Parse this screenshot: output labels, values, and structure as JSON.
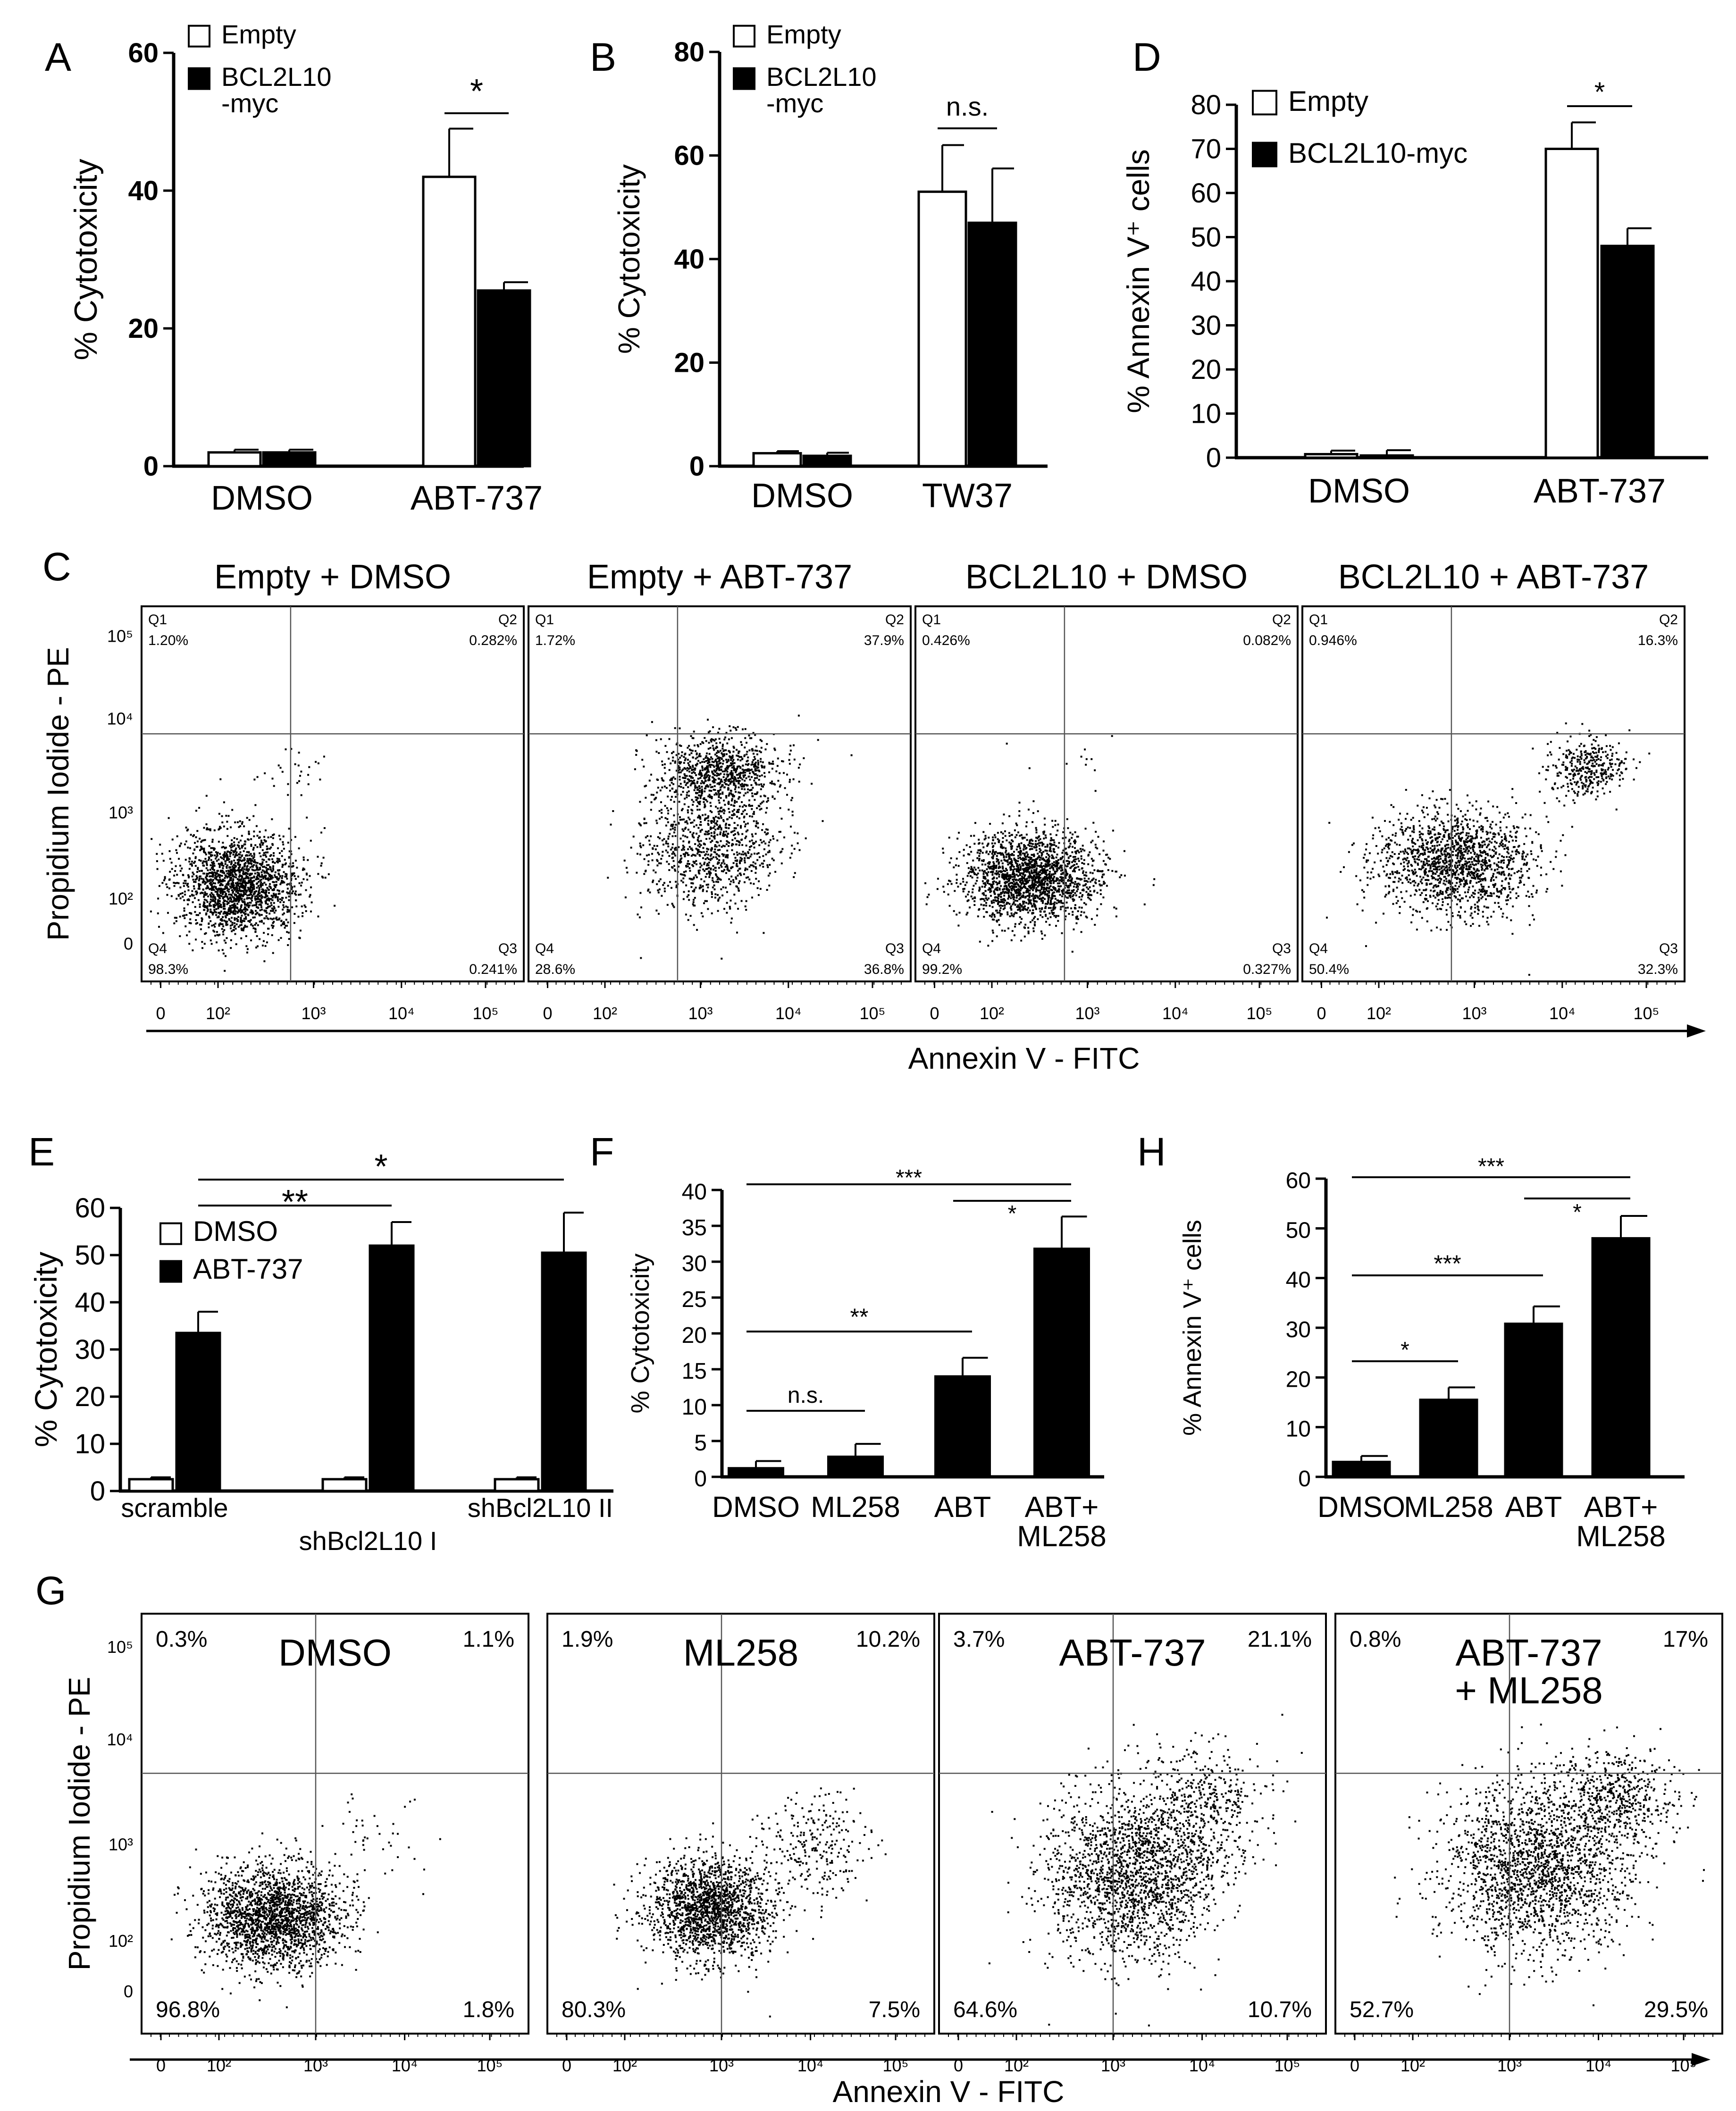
{
  "chart_data": [
    {
      "panel": "A",
      "type": "bar",
      "categories": [
        "DMSO",
        "ABT-737"
      ],
      "series": [
        {
          "name": "Empty",
          "fill": "#ffffff",
          "values": [
            2,
            42
          ],
          "errors": [
            0.4,
            7
          ]
        },
        {
          "name": "BCL2L10\n-myc",
          "fill": "#000000",
          "values": [
            2,
            25.5
          ],
          "errors": [
            0.4,
            1.2
          ]
        }
      ],
      "ylabel": "% Cytotoxicity",
      "ylim": [
        0,
        60
      ],
      "yticks": [
        0,
        20,
        40,
        60
      ],
      "ytick_bold": true,
      "legend": "top-left",
      "brackets": [
        {
          "from": 2,
          "to": 3,
          "label": "*"
        }
      ]
    },
    {
      "panel": "B",
      "type": "bar",
      "categories": [
        "DMSO",
        "TW37"
      ],
      "series": [
        {
          "name": "Empty",
          "fill": "#ffffff",
          "values": [
            2.5,
            53
          ],
          "errors": [
            0.4,
            9
          ]
        },
        {
          "name": "BCL2L10\n-myc",
          "fill": "#000000",
          "values": [
            2,
            47
          ],
          "errors": [
            0.6,
            10.5
          ]
        }
      ],
      "ylabel": "% Cytotoxicity",
      "ylim": [
        0,
        80
      ],
      "yticks": [
        0,
        20,
        40,
        60,
        80
      ],
      "ytick_bold": true,
      "legend": "top-left",
      "brackets": [
        {
          "from": 2,
          "to": 3,
          "label": "n.s."
        }
      ]
    },
    {
      "panel": "D",
      "type": "bar",
      "categories": [
        "DMSO",
        "ABT-737"
      ],
      "series": [
        {
          "name": "Empty",
          "fill": "#ffffff",
          "values": [
            0.8,
            70
          ],
          "errors": [
            0.8,
            6
          ]
        },
        {
          "name": "BCL2L10-myc",
          "fill": "#000000",
          "values": [
            0.5,
            48
          ],
          "errors": [
            1.2,
            4
          ]
        }
      ],
      "ylabel": "% Annexin V⁺ cells",
      "ylim": [
        0,
        80
      ],
      "yticks": [
        0,
        10,
        20,
        30,
        40,
        50,
        60,
        70,
        80
      ],
      "legend": "top-left",
      "brackets": [
        {
          "from": 2,
          "to": 3,
          "label": "*"
        }
      ]
    },
    {
      "panel": "E",
      "type": "bar",
      "categories": [
        "scramble",
        "shBcl2L10 I",
        "shBcl2L10 II"
      ],
      "series": [
        {
          "name": "DMSO",
          "fill": "#ffffff",
          "values": [
            2.5,
            2.5,
            2.5
          ],
          "errors": [
            0.4,
            0.4,
            0.4
          ]
        },
        {
          "name": "ABT-737",
          "fill": "#000000",
          "values": [
            33.5,
            52,
            50.5
          ],
          "errors": [
            4.5,
            5,
            8.5
          ]
        }
      ],
      "ylabel": "% Cytotoxicity",
      "ylim": [
        0,
        60
      ],
      "yticks": [
        0,
        10,
        20,
        30,
        40,
        50,
        60
      ],
      "legend": "top-left",
      "brackets": [
        {
          "from": 1,
          "to": 3,
          "label": "**"
        },
        {
          "from": 1,
          "to": 5,
          "label": "*"
        }
      ]
    },
    {
      "panel": "F",
      "type": "bar",
      "categories": [
        "DMSO",
        "ML258",
        "ABT",
        "ABT+\nML258"
      ],
      "series": [
        {
          "name": "",
          "fill": "#000000",
          "values": [
            1.2,
            2.8,
            14,
            31.8
          ],
          "errors": [
            1,
            1.8,
            2.6,
            4.5
          ]
        }
      ],
      "ylabel": "% Cytotoxicity",
      "ylim": [
        0,
        40
      ],
      "yticks": [
        0,
        5,
        10,
        15,
        20,
        25,
        30,
        35,
        40
      ],
      "brackets": [
        {
          "from": 0,
          "to": 1,
          "label": "n.s."
        },
        {
          "from": 0,
          "to": 2,
          "label": "**"
        },
        {
          "from": 2,
          "to": 3,
          "label": "*"
        },
        {
          "from": 0,
          "to": 3,
          "label": "***"
        }
      ]
    },
    {
      "panel": "H",
      "type": "bar",
      "categories": [
        "DMSO",
        "ML258",
        "ABT",
        "ABT+\nML258"
      ],
      "series": [
        {
          "name": "",
          "fill": "#000000",
          "values": [
            3,
            15.5,
            30.8,
            48
          ],
          "errors": [
            1.2,
            2.5,
            3.5,
            4.5
          ]
        }
      ],
      "ylabel": "% Annexin V⁺ cells",
      "ylim": [
        0,
        60
      ],
      "yticks": [
        0,
        10,
        20,
        30,
        40,
        50,
        60
      ],
      "brackets": [
        {
          "from": 0,
          "to": 1,
          "label": "*"
        },
        {
          "from": 0,
          "to": 2,
          "label": "***"
        },
        {
          "from": 2,
          "to": 3,
          "label": "*"
        },
        {
          "from": 0,
          "to": 3,
          "label": "***"
        }
      ]
    },
    {
      "panel": "C",
      "type": "scatter",
      "xlabel": "Annexin V - FITC",
      "ylabel": "Propidium Iodide - PE",
      "ytick_labels": [
        "10⁵",
        "10⁴",
        "10³",
        "10²",
        "0"
      ],
      "xtick_labels": [
        "0",
        "10²",
        "10³",
        "10⁴",
        "10⁵"
      ],
      "plots": [
        {
          "title": "Empty + DMSO",
          "quadrants": {
            "Q1": "1.20%",
            "Q2": "0.282%",
            "Q3": "0.241%",
            "Q4": "98.3%"
          },
          "populations": [
            {
              "cx": 0.25,
              "cy": 0.74,
              "sx": 0.08,
              "sy": 0.07,
              "n": 1900
            },
            {
              "cx": 0.38,
              "cy": 0.44,
              "sx": 0.06,
              "sy": 0.04,
              "n": 28
            }
          ]
        },
        {
          "title": "Empty + ABT-737",
          "quadrants": {
            "Q1": "1.72%",
            "Q2": "37.9%",
            "Q3": "36.8%",
            "Q4": "28.6%"
          },
          "populations": [
            {
              "cx": 0.47,
              "cy": 0.65,
              "sx": 0.09,
              "sy": 0.08,
              "n": 900
            },
            {
              "cx": 0.5,
              "cy": 0.44,
              "sx": 0.08,
              "sy": 0.05,
              "n": 900
            }
          ]
        },
        {
          "title": "BCL2L10 + DMSO",
          "quadrants": {
            "Q1": "0.426%",
            "Q2": "0.082%",
            "Q3": "0.327%",
            "Q4": "99.2%"
          },
          "populations": [
            {
              "cx": 0.3,
              "cy": 0.72,
              "sx": 0.09,
              "sy": 0.06,
              "n": 1900
            },
            {
              "cx": 0.42,
              "cy": 0.42,
              "sx": 0.08,
              "sy": 0.04,
              "n": 12
            }
          ]
        },
        {
          "title": "BCL2L10 + ABT-737",
          "quadrants": {
            "Q1": "0.946%",
            "Q2": "16.3%",
            "Q3": "32.3%",
            "Q4": "50.4%"
          },
          "populations": [
            {
              "cx": 0.4,
              "cy": 0.68,
              "sx": 0.1,
              "sy": 0.07,
              "n": 1500
            },
            {
              "cx": 0.74,
              "cy": 0.43,
              "sx": 0.05,
              "sy": 0.04,
              "n": 350
            }
          ]
        }
      ]
    },
    {
      "panel": "G",
      "type": "scatter",
      "xlabel": "Annexin V - FITC",
      "ylabel": "Propidium Iodide - PE",
      "ytick_labels": [
        "10⁵",
        "10⁴",
        "10³",
        "10²",
        "0"
      ],
      "xtick_labels": [
        "0",
        "10²",
        "10³",
        "10⁴",
        "10⁵"
      ],
      "plots": [
        {
          "title": "DMSO",
          "quadrants": {
            "UL": "0.3%",
            "UR": "1.1%",
            "LL": "96.8%",
            "LR": "1.8%"
          },
          "populations": [
            {
              "cx": 0.34,
              "cy": 0.72,
              "sx": 0.09,
              "sy": 0.06,
              "n": 2000
            },
            {
              "cx": 0.6,
              "cy": 0.52,
              "sx": 0.08,
              "sy": 0.05,
              "n": 40
            }
          ]
        },
        {
          "title": "ML258",
          "quadrants": {
            "UL": "1.9%",
            "UR": "10.2%",
            "LL": "80.3%",
            "LR": "7.5%"
          },
          "populations": [
            {
              "cx": 0.42,
              "cy": 0.7,
              "sx": 0.08,
              "sy": 0.06,
              "n": 1700
            },
            {
              "cx": 0.68,
              "cy": 0.55,
              "sx": 0.07,
              "sy": 0.06,
              "n": 250
            }
          ]
        },
        {
          "title": "ABT-737",
          "quadrants": {
            "UL": "3.7%",
            "UR": "21.1%",
            "LL": "64.6%",
            "LR": "10.7%"
          },
          "populations": [
            {
              "cx": 0.5,
              "cy": 0.62,
              "sx": 0.11,
              "sy": 0.1,
              "n": 1900
            },
            {
              "cx": 0.68,
              "cy": 0.45,
              "sx": 0.08,
              "sy": 0.07,
              "n": 400
            }
          ]
        },
        {
          "title": "ABT-737\n+ ML258",
          "quadrants": {
            "UL": "0.8%",
            "UR": "17%",
            "LL": "52.7%",
            "LR": "29.5%"
          },
          "populations": [
            {
              "cx": 0.52,
              "cy": 0.6,
              "sx": 0.12,
              "sy": 0.1,
              "n": 1900
            },
            {
              "cx": 0.72,
              "cy": 0.44,
              "sx": 0.08,
              "sy": 0.06,
              "n": 500
            }
          ]
        }
      ]
    }
  ]
}
